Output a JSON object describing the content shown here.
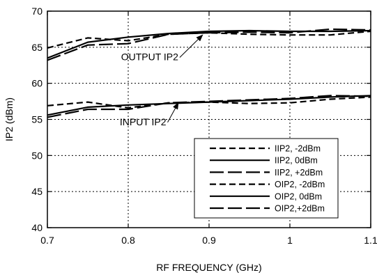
{
  "chart_data": {
    "type": "line",
    "xlabel": "RF FREQUENCY (GHz)",
    "ylabel": "IP2 (dBm)",
    "xlim": [
      0.7,
      1.1
    ],
    "ylim": [
      40,
      70
    ],
    "x_ticks": [
      "0.7",
      "0.8",
      "0.9",
      "1",
      "1.1"
    ],
    "y_ticks": [
      "40",
      "45",
      "50",
      "55",
      "60",
      "65",
      "70"
    ],
    "grid": "dotted",
    "legend_position": "bottom-right",
    "series": [
      {
        "name": "IIP2,  -2dBm",
        "dash": "short",
        "x": [
          0.7,
          0.75,
          0.8,
          0.85,
          0.9,
          0.95,
          1.0,
          1.05,
          1.1
        ],
        "y": [
          56.9,
          57.4,
          56.6,
          57.3,
          57.4,
          57.2,
          57.3,
          57.8,
          58.1
        ]
      },
      {
        "name": "IIP2,   0dBm",
        "dash": "solid",
        "x": [
          0.7,
          0.75,
          0.8,
          0.85,
          0.9,
          0.95,
          1.0,
          1.05,
          1.1
        ],
        "y": [
          55.6,
          56.7,
          57.0,
          57.2,
          57.4,
          57.6,
          57.8,
          58.1,
          58.3
        ]
      },
      {
        "name": "IIP2, +2dBm",
        "dash": "long",
        "x": [
          0.7,
          0.75,
          0.8,
          0.85,
          0.9,
          0.95,
          1.0,
          1.05,
          1.1
        ],
        "y": [
          55.3,
          56.4,
          56.4,
          57.3,
          57.5,
          57.7,
          57.9,
          58.3,
          58.2
        ]
      },
      {
        "name": "OIP2, -2dBm",
        "dash": "short",
        "x": [
          0.7,
          0.75,
          0.8,
          0.85,
          0.9,
          0.95,
          1.0,
          1.05,
          1.1
        ],
        "y": [
          64.9,
          66.3,
          65.9,
          66.8,
          67.0,
          66.8,
          66.7,
          66.7,
          67.2
        ]
      },
      {
        "name": "OIP2,  0dBm",
        "dash": "solid",
        "x": [
          0.7,
          0.75,
          0.8,
          0.85,
          0.9,
          0.95,
          1.0,
          1.05,
          1.1
        ],
        "y": [
          63.5,
          65.7,
          66.4,
          66.9,
          67.2,
          67.3,
          67.2,
          67.2,
          67.3
        ]
      },
      {
        "name": "OIP2,+2dBm",
        "dash": "long",
        "x": [
          0.7,
          0.75,
          0.8,
          0.85,
          0.9,
          0.95,
          1.0,
          1.05,
          1.1
        ],
        "y": [
          63.2,
          65.3,
          65.5,
          66.8,
          67.0,
          67.1,
          67.0,
          67.5,
          67.4
        ]
      }
    ],
    "annotations": [
      {
        "id": "output",
        "text": "OUTPUT IP2",
        "x": 0.862,
        "y": 63.2,
        "arrow_to_x": 0.892,
        "arrow_to_y": 66.7
      },
      {
        "id": "input",
        "text": "INPUT IP2",
        "x": 0.847,
        "y": 54.2,
        "arrow_to_x": 0.862,
        "arrow_to_y": 57.3
      }
    ]
  }
}
